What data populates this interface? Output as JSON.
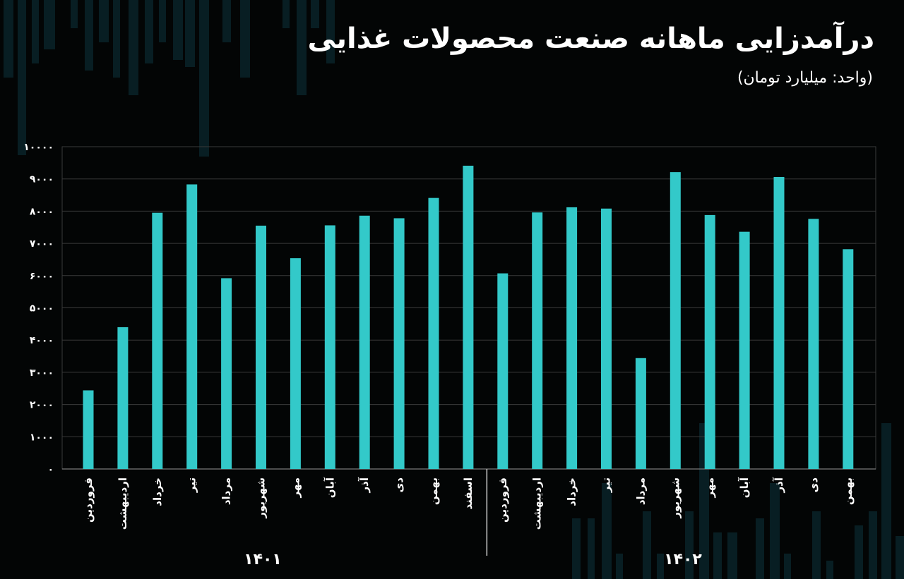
{
  "header": {
    "title": "درآمدزایی ماهانه صنعت محصولات غذایی",
    "subtitle": "(واحد: میلیارد تومان)"
  },
  "chart_data": {
    "type": "bar",
    "title": "درآمدزایی ماهانه صنعت محصولات غذایی",
    "subtitle": "(واحد: میلیارد تومان)",
    "ylim": [
      0,
      10000
    ],
    "yticks": [
      0,
      1000,
      2000,
      3000,
      4000,
      5000,
      6000,
      7000,
      8000,
      9000,
      10000
    ],
    "ytick_labels": [
      "۰",
      "۱۰۰۰",
      "۲۰۰۰",
      "۳۰۰۰",
      "۴۰۰۰",
      "۵۰۰۰",
      "۶۰۰۰",
      "۷۰۰۰",
      "۸۰۰۰",
      "۹۰۰۰",
      "۱۰۰۰۰"
    ],
    "grid": true,
    "bar_color": "#33c9c9",
    "groups": [
      {
        "label": "۱۴۰۱",
        "categories": [
          "فروردین",
          "اردیبهشت",
          "خرداد",
          "تیر",
          "مرداد",
          "شهریور",
          "مهر",
          "آبان",
          "آذر",
          "دی",
          "بهمن",
          "اسفند"
        ],
        "values": [
          2440,
          4400,
          7950,
          8830,
          5920,
          7550,
          6540,
          7560,
          7860,
          7780,
          8410,
          9410
        ]
      },
      {
        "label": "۱۴۰۲",
        "categories": [
          "فروردین",
          "اردیبهشت",
          "خرداد",
          "تیر",
          "مرداد",
          "شهریور",
          "مهر",
          "آبان",
          "آذر",
          "دی",
          "بهمن"
        ],
        "values": [
          6070,
          7960,
          8120,
          8080,
          3440,
          9210,
          7880,
          7360,
          9060,
          7760,
          6820
        ]
      }
    ]
  }
}
